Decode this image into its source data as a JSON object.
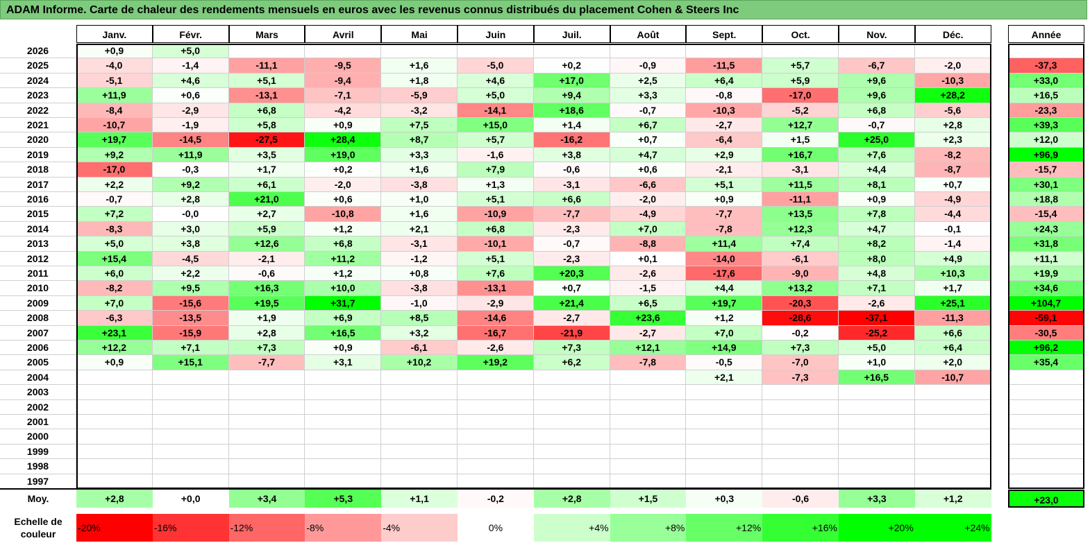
{
  "title": "ADAM Informe. Carte de chaleur des rendements mensuels en euros avec les revenus connus distribués du placement Cohen & Steers Inc",
  "colors": {
    "negative_max": "#ff0000",
    "positive_max": "#00ff00",
    "neutral": "#ffffff",
    "title_bg": "#7ecb7e"
  },
  "chart_data": {
    "type": "heatmap",
    "title": "ADAM Informe. Carte de chaleur des rendements mensuels en euros avec les revenus connus distribués du placement Cohen & Steers Inc",
    "months": [
      "Janv.",
      "Févr.",
      "Mars",
      "Avril",
      "Mai",
      "Juin",
      "Juil.",
      "Août",
      "Sept.",
      "Oct.",
      "Nov.",
      "Déc."
    ],
    "year_header": "Année",
    "rows": [
      {
        "year": "2026",
        "values": [
          "+0,9",
          "+5,0",
          "",
          "",
          "",
          "",
          "",
          "",
          "",
          "",
          "",
          ""
        ],
        "annual": ""
      },
      {
        "year": "2025",
        "values": [
          "-4,0",
          "-1,4",
          "-11,1",
          "-9,5",
          "+1,6",
          "-5,0",
          "+0,2",
          "-0,9",
          "-11,5",
          "+5,7",
          "-6,7",
          "-2,0"
        ],
        "annual": "-37,3"
      },
      {
        "year": "2024",
        "values": [
          "-5,1",
          "+4,6",
          "+5,1",
          "-9,4",
          "+1,8",
          "+4,6",
          "+17,0",
          "+2,5",
          "+6,4",
          "+5,9",
          "+9,6",
          "-10,3"
        ],
        "annual": "+33,0"
      },
      {
        "year": "2023",
        "values": [
          "+11,9",
          "+0,6",
          "-13,1",
          "-7,1",
          "-5,9",
          "+5,0",
          "+9,4",
          "+3,3",
          "-0,8",
          "-17,0",
          "+9,6",
          "+28,2"
        ],
        "annual": "+16,5"
      },
      {
        "year": "2022",
        "values": [
          "-8,4",
          "-2,9",
          "+6,8",
          "-4,2",
          "-3,2",
          "-14,1",
          "+18,6",
          "-0,7",
          "-10,3",
          "-5,2",
          "+6,8",
          "-5,6"
        ],
        "annual": "-23,3"
      },
      {
        "year": "2021",
        "values": [
          "-10,7",
          "-1,9",
          "+5,8",
          "+0,9",
          "+7,5",
          "+15,0",
          "+1,4",
          "+6,7",
          "-2,7",
          "+12,7",
          "-0,7",
          "+2,8"
        ],
        "annual": "+39,3"
      },
      {
        "year": "2020",
        "values": [
          "+19,7",
          "-14,5",
          "-27,5",
          "+28,4",
          "+8,7",
          "+5,7",
          "-16,2",
          "+0,7",
          "-6,4",
          "+1,5",
          "+25,0",
          "+2,3"
        ],
        "annual": "+12,0"
      },
      {
        "year": "2019",
        "values": [
          "+9,2",
          "+11,9",
          "+3,5",
          "+19,0",
          "+3,3",
          "-1,6",
          "+3,8",
          "+4,7",
          "+2,9",
          "+16,7",
          "+7,6",
          "-8,2"
        ],
        "annual": "+96,9"
      },
      {
        "year": "2018",
        "values": [
          "-17,0",
          "-0,3",
          "+1,7",
          "+0,2",
          "+1,6",
          "+7,9",
          "-0,6",
          "+0,6",
          "-2,1",
          "-3,1",
          "+4,4",
          "-8,7"
        ],
        "annual": "-15,7"
      },
      {
        "year": "2017",
        "values": [
          "+2,2",
          "+9,2",
          "+6,1",
          "-2,0",
          "-3,8",
          "+1,3",
          "-3,1",
          "-6,6",
          "+5,1",
          "+11,5",
          "+8,1",
          "+0,7"
        ],
        "annual": "+30,1"
      },
      {
        "year": "2016",
        "values": [
          "-0,7",
          "+2,8",
          "+21,0",
          "+0,6",
          "+1,0",
          "+5,1",
          "+6,6",
          "-2,0",
          "+0,9",
          "-11,1",
          "+0,9",
          "-4,9"
        ],
        "annual": "+18,8"
      },
      {
        "year": "2015",
        "values": [
          "+7,2",
          "-0,0",
          "+2,7",
          "-10,8",
          "+1,6",
          "-10,9",
          "-7,7",
          "-4,9",
          "-7,7",
          "+13,5",
          "+7,8",
          "-4,4"
        ],
        "annual": "-15,4"
      },
      {
        "year": "2014",
        "values": [
          "-8,3",
          "+3,0",
          "+5,9",
          "+1,2",
          "+2,1",
          "+6,8",
          "-2,3",
          "+7,0",
          "-7,8",
          "+12,3",
          "+4,7",
          "-0,1"
        ],
        "annual": "+24,3"
      },
      {
        "year": "2013",
        "values": [
          "+5,0",
          "+3,8",
          "+12,6",
          "+6,8",
          "-3,1",
          "-10,1",
          "-0,7",
          "-8,8",
          "+11,4",
          "+7,4",
          "+8,2",
          "-1,4"
        ],
        "annual": "+31,8"
      },
      {
        "year": "2012",
        "values": [
          "+15,4",
          "-4,5",
          "-2,1",
          "+11,2",
          "-1,2",
          "+5,1",
          "-2,3",
          "+0,1",
          "-14,0",
          "-6,1",
          "+8,0",
          "+4,9"
        ],
        "annual": "+11,1"
      },
      {
        "year": "2011",
        "values": [
          "+6,0",
          "+2,2",
          "-0,6",
          "+1,2",
          "+0,8",
          "+7,6",
          "+20,3",
          "-2,6",
          "-17,6",
          "-9,0",
          "+4,8",
          "+10,3"
        ],
        "annual": "+19,9"
      },
      {
        "year": "2010",
        "values": [
          "-8,2",
          "+9,5",
          "+16,3",
          "+10,0",
          "-3,8",
          "-13,1",
          "+0,7",
          "-1,5",
          "+4,4",
          "+13,2",
          "+7,1",
          "+1,7"
        ],
        "annual": "+34,6"
      },
      {
        "year": "2009",
        "values": [
          "+7,0",
          "-15,6",
          "+19,5",
          "+31,7",
          "-1,0",
          "-2,9",
          "+21,4",
          "+6,5",
          "+19,7",
          "-20,3",
          "-2,6",
          "+25,1"
        ],
        "annual": "+104,7"
      },
      {
        "year": "2008",
        "values": [
          "-6,3",
          "-13,5",
          "+1,9",
          "+6,9",
          "+8,5",
          "-14,6",
          "-2,7",
          "+23,6",
          "+1,2",
          "-28,6",
          "-37,1",
          "-11,3"
        ],
        "annual": "-59,1"
      },
      {
        "year": "2007",
        "values": [
          "+23,1",
          "-15,9",
          "+2,8",
          "+16,5",
          "+3,2",
          "-16,7",
          "-21,9",
          "-2,7",
          "+7,0",
          "-0,2",
          "-25,2",
          "+6,6"
        ],
        "annual": "-30,5"
      },
      {
        "year": "2006",
        "values": [
          "+12,2",
          "+7,1",
          "+7,3",
          "+0,9",
          "-6,1",
          "-2,6",
          "+7,3",
          "+12,1",
          "+14,9",
          "+7,3",
          "+5,0",
          "+6,4"
        ],
        "annual": "+96,2"
      },
      {
        "year": "2005",
        "values": [
          "+0,9",
          "+15,1",
          "-7,7",
          "+3,1",
          "+10,2",
          "+19,2",
          "+6,2",
          "-7,8",
          "-0,5",
          "-7,0",
          "+1,0",
          "+2,0"
        ],
        "annual": "+35,4"
      },
      {
        "year": "2004",
        "values": [
          "",
          "",
          "",
          "",
          "",
          "",
          "",
          "",
          "+2,1",
          "-7,3",
          "+16,5",
          "-10,7"
        ],
        "annual": ""
      },
      {
        "year": "2003",
        "values": [
          "",
          "",
          "",
          "",
          "",
          "",
          "",
          "",
          "",
          "",
          "",
          ""
        ],
        "annual": ""
      },
      {
        "year": "2002",
        "values": [
          "",
          "",
          "",
          "",
          "",
          "",
          "",
          "",
          "",
          "",
          "",
          ""
        ],
        "annual": ""
      },
      {
        "year": "2001",
        "values": [
          "",
          "",
          "",
          "",
          "",
          "",
          "",
          "",
          "",
          "",
          "",
          ""
        ],
        "annual": ""
      },
      {
        "year": "2000",
        "values": [
          "",
          "",
          "",
          "",
          "",
          "",
          "",
          "",
          "",
          "",
          "",
          ""
        ],
        "annual": ""
      },
      {
        "year": "1999",
        "values": [
          "",
          "",
          "",
          "",
          "",
          "",
          "",
          "",
          "",
          "",
          "",
          ""
        ],
        "annual": ""
      },
      {
        "year": "1998",
        "values": [
          "",
          "",
          "",
          "",
          "",
          "",
          "",
          "",
          "",
          "",
          "",
          ""
        ],
        "annual": ""
      },
      {
        "year": "1997",
        "values": [
          "",
          "",
          "",
          "",
          "",
          "",
          "",
          "",
          "",
          "",
          "",
          ""
        ],
        "annual": ""
      }
    ],
    "average": {
      "label": "Moy.",
      "values": [
        "+2,8",
        "+0,0",
        "+3,4",
        "+5,3",
        "+1,1",
        "-0,2",
        "+2,8",
        "+1,5",
        "+0,3",
        "-0,6",
        "+3,3",
        "+1,2"
      ],
      "annual": "+23,0"
    },
    "scale": {
      "label": "Echelle de couleur",
      "stops": [
        "-20%",
        "-16%",
        "-12%",
        "-8%",
        "-4%",
        "0%",
        "+4%",
        "+8%",
        "+12%",
        "+16%",
        "+20%",
        "+24%"
      ]
    }
  }
}
